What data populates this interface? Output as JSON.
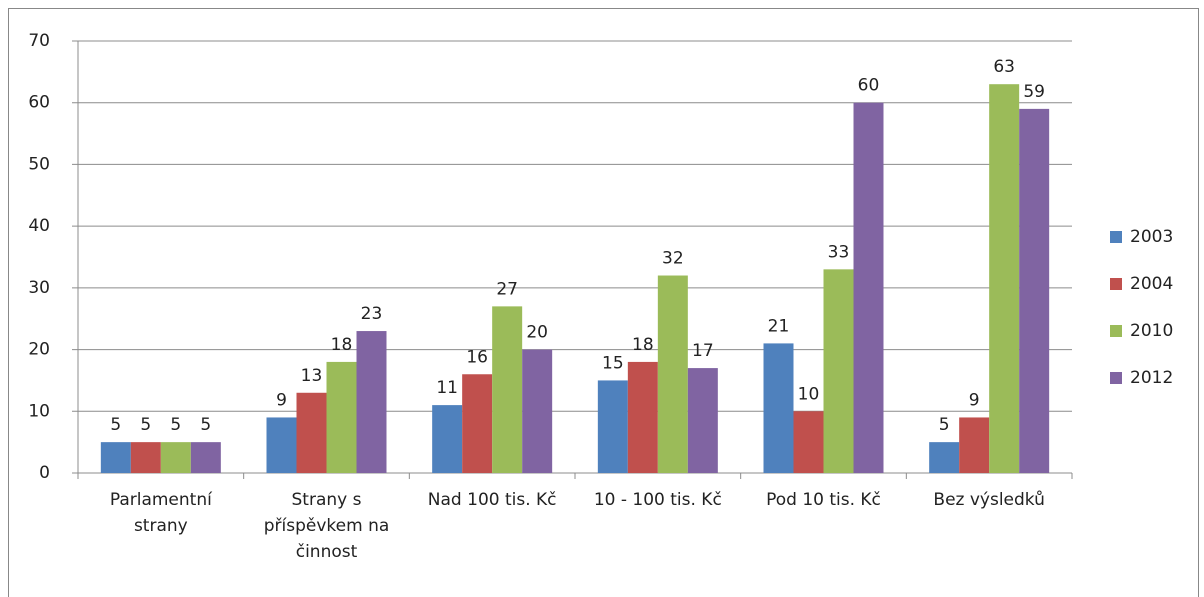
{
  "chart_data": {
    "type": "bar",
    "categories": [
      "Parlamentní strany",
      "Strany s příspěvkem na činnost",
      "Nad 100 tis. Kč",
      "10 - 100 tis. Kč",
      "Pod 10 tis. Kč",
      "Bez výsledků"
    ],
    "series": [
      {
        "name": "2003",
        "color": "#4f81bd",
        "values": [
          5,
          9,
          11,
          15,
          21,
          5
        ]
      },
      {
        "name": "2004",
        "color": "#c0504d",
        "values": [
          5,
          13,
          16,
          18,
          10,
          9
        ]
      },
      {
        "name": "2010",
        "color": "#9bbb59",
        "values": [
          5,
          18,
          27,
          32,
          33,
          63
        ]
      },
      {
        "name": "2012",
        "color": "#8064a2",
        "values": [
          5,
          23,
          20,
          17,
          60,
          59
        ]
      }
    ],
    "ylim": [
      0,
      70
    ],
    "yticks": [
      0,
      10,
      20,
      30,
      40,
      50,
      60,
      70
    ],
    "grid": true,
    "legend": "right"
  }
}
